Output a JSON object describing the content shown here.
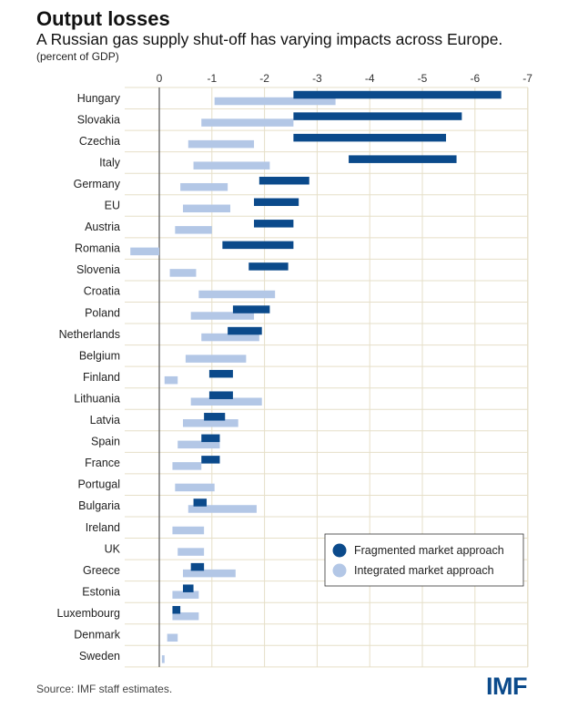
{
  "header": {
    "title": "Output losses",
    "subtitle": "A Russian gas supply shut-off has varying impacts across Europe.",
    "unit": "(percent of GDP)"
  },
  "footer": {
    "source": "Source: IMF staff estimates.",
    "logo": "IMF"
  },
  "colors": {
    "fragmented": "#0b4a8b",
    "integrated": "#b3c7e6",
    "grid": "#e6dfc8",
    "axis": "#555555"
  },
  "chart_data": {
    "type": "bar",
    "orientation": "horizontal",
    "title": "Output losses",
    "subtitle": "A Russian gas supply shut-off has varying impacts across Europe.",
    "unit_label": "(percent of GDP)",
    "x_ticks": [
      0,
      -1,
      -2,
      -3,
      -4,
      -5,
      -6,
      -7
    ],
    "x_tick_labels": [
      "0",
      "-1",
      "-2",
      "-3",
      "-4",
      "-5",
      "-6",
      "-7"
    ],
    "xlim": [
      0.6,
      -7.0
    ],
    "x_axis_reversed": true,
    "grid": true,
    "legend_position": "bottom-right",
    "categories": [
      "Hungary",
      "Slovakia",
      "Czechia",
      "Italy",
      "Germany",
      "EU",
      "Austria",
      "Romania",
      "Slovenia",
      "Croatia",
      "Poland",
      "Netherlands",
      "Belgium",
      "Finland",
      "Lithuania",
      "Latvia",
      "Spain",
      "France",
      "Portugal",
      "Bulgaria",
      "Ireland",
      "UK",
      "Greece",
      "Estonia",
      "Luxembourg",
      "Denmark",
      "Sweden"
    ],
    "series": [
      {
        "name": "Fragmented market approach",
        "color": "#0b4a8b",
        "ranges": [
          [
            -2.55,
            -6.5
          ],
          [
            -2.55,
            -5.75
          ],
          [
            -2.55,
            -5.45
          ],
          [
            -3.6,
            -5.65
          ],
          [
            -1.9,
            -2.85
          ],
          [
            -1.8,
            -2.65
          ],
          [
            -1.8,
            -2.55
          ],
          [
            -1.2,
            -2.55
          ],
          [
            -1.7,
            -2.45
          ],
          null,
          [
            -1.4,
            -2.1
          ],
          [
            -1.3,
            -1.95
          ],
          null,
          [
            -0.95,
            -1.4
          ],
          [
            -0.95,
            -1.4
          ],
          [
            -0.85,
            -1.25
          ],
          [
            -0.8,
            -1.15
          ],
          [
            -0.8,
            -1.15
          ],
          null,
          [
            -0.65,
            -0.9
          ],
          null,
          null,
          [
            -0.6,
            -0.85
          ],
          [
            -0.45,
            -0.65
          ],
          [
            -0.25,
            -0.4
          ],
          null,
          null
        ]
      },
      {
        "name": "Integrated market approach",
        "color": "#b3c7e6",
        "ranges": [
          [
            -1.05,
            -3.35
          ],
          [
            -0.8,
            -2.55
          ],
          [
            -0.55,
            -1.8
          ],
          [
            -0.65,
            -2.1
          ],
          [
            -0.4,
            -1.3
          ],
          [
            -0.45,
            -1.35
          ],
          [
            -0.3,
            -1.0
          ],
          [
            0.55,
            0.0
          ],
          [
            -0.2,
            -0.7
          ],
          [
            -0.75,
            -2.2
          ],
          [
            -0.6,
            -1.8
          ],
          [
            -0.8,
            -1.9
          ],
          [
            -0.5,
            -1.65
          ],
          [
            -0.1,
            -0.35
          ],
          [
            -0.6,
            -1.95
          ],
          [
            -0.45,
            -1.5
          ],
          [
            -0.35,
            -1.15
          ],
          [
            -0.25,
            -0.8
          ],
          [
            -0.3,
            -1.05
          ],
          [
            -0.55,
            -1.85
          ],
          [
            -0.25,
            -0.85
          ],
          [
            -0.35,
            -0.85
          ],
          [
            -0.45,
            -1.45
          ],
          [
            -0.25,
            -0.75
          ],
          [
            -0.25,
            -0.75
          ],
          [
            -0.15,
            -0.35
          ],
          [
            -0.05,
            -0.1
          ]
        ]
      }
    ]
  }
}
